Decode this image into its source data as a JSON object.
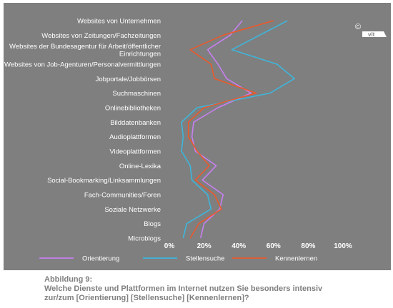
{
  "chart_data": {
    "type": "line",
    "orientation": "horizontal",
    "categories": [
      "Websites von Unternehmen",
      "Websites von Zeitungen/Fachzeitungen",
      "Websites der Bundesagentur für Arbeit/öffentlicher Einrichtungen",
      "Websites von Job-Agenturen/Personalvermittlungen",
      "Jobportale/Jobbörsen",
      "Suchmaschinen",
      "Onlinebibliotheken",
      "Bilddatenbanken",
      "Audioplattformen",
      "Videoplattformen",
      "Online-Lexika",
      "Social-Bookmarking/Linksammlungen",
      "Fach-Communities/Foren",
      "Soziale Netzwerke",
      "Blogs",
      "Microblogs"
    ],
    "category_lines": [
      [
        "Websites von Unternehmen"
      ],
      [
        "Websites von Zeitungen/Fachzeitungen"
      ],
      [
        "Websites der Bundesagentur für Arbeit/öffentlicher",
        "Einrichtungen"
      ],
      [
        "Websites von Job-Agenturen/Personalvermittlungen"
      ],
      [
        "Jobportale/Jobbörsen"
      ],
      [
        "Suchmaschinen"
      ],
      [
        "Onlinebibliotheken"
      ],
      [
        "Bilddatenbanken"
      ],
      [
        "Audioplattformen"
      ],
      [
        "Videoplattformen"
      ],
      [
        "Online-Lexika"
      ],
      [
        "Social-Bookmarking/Linksammlungen"
      ],
      [
        "Fach-Communities/Foren"
      ],
      [
        "Soziale Netzwerke"
      ],
      [
        "Blogs"
      ],
      [
        "Microblogs"
      ]
    ],
    "series": [
      {
        "name": "Orientierung",
        "color": "#c77ff0",
        "values": [
          0.42,
          0.35,
          0.22,
          0.28,
          0.33,
          0.47,
          0.28,
          0.14,
          0.13,
          0.15,
          0.27,
          0.19,
          0.31,
          0.29,
          0.2,
          0.18
        ]
      },
      {
        "name": "Stellensuche",
        "color": "#3eb6db",
        "values": [
          0.68,
          0.52,
          0.36,
          0.62,
          0.72,
          0.58,
          0.16,
          0.07,
          0.08,
          0.07,
          0.12,
          0.13,
          0.22,
          0.24,
          0.1,
          0.08
        ]
      },
      {
        "name": "Kennenlernen",
        "color": "#ea5a2c",
        "values": [
          0.6,
          0.31,
          0.12,
          0.24,
          0.26,
          0.5,
          0.2,
          0.11,
          0.11,
          0.16,
          0.23,
          0.15,
          0.26,
          0.3,
          0.17,
          0.12
        ]
      }
    ],
    "xlim": [
      0,
      1
    ],
    "xticks": [
      "0%",
      "20%",
      "40%",
      "60%",
      "80%",
      "100%"
    ],
    "grid": false,
    "legend_position": "bottom"
  },
  "caption": {
    "line1": "Abbildung 9:",
    "line2": "Welche Dienste und Plattformen im Internet nutzen Sie besonders intensiv",
    "line3": "zur/zum [Orientierung] [Stellensuche] [Kennenlernen]?"
  },
  "logo": {
    "symbol": "©",
    "text": "vit"
  },
  "colors": {
    "panel": "#7f7f7f",
    "caption": "#7f7f7f"
  }
}
